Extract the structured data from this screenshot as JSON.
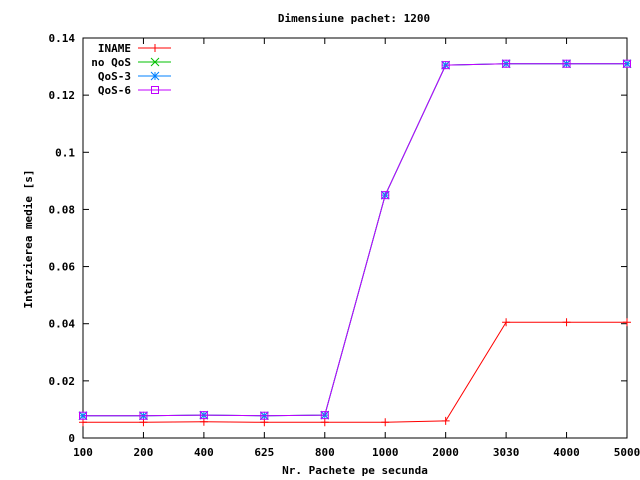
{
  "chart_data": {
    "type": "line",
    "title": "Dimensiune pachet: 1200",
    "xlabel": "Nr. Pachete pe secunda",
    "ylabel": "Intarzierea medie [s]",
    "categories": [
      "100",
      "200",
      "400",
      "625",
      "800",
      "1000",
      "2000",
      "3030",
      "4000",
      "5000"
    ],
    "ylim": [
      0,
      0.14
    ],
    "yticks": [
      0,
      0.02,
      0.04,
      0.06,
      0.08,
      0.1,
      0.12,
      0.14
    ],
    "ytick_labels": [
      "0",
      "0.02",
      "0.04",
      "0.06",
      "0.08",
      "0.1",
      "0.12",
      "0.14"
    ],
    "grid": false,
    "legend_position": "top-left",
    "series": [
      {
        "name": "INAME",
        "color": "#ff0000",
        "marker": "plus",
        "values": [
          0.0055,
          0.0055,
          0.0057,
          0.0055,
          0.0055,
          0.0055,
          0.006,
          0.0405,
          0.0405,
          0.0405
        ]
      },
      {
        "name": "no QoS",
        "color": "#00c000",
        "marker": "x",
        "values": [
          0.0078,
          0.0078,
          0.008,
          0.0078,
          0.008,
          0.085,
          0.1305,
          0.131,
          0.131,
          0.131
        ]
      },
      {
        "name": "QoS-3",
        "color": "#0080ff",
        "marker": "star",
        "values": [
          0.0078,
          0.0078,
          0.008,
          0.0078,
          0.008,
          0.085,
          0.1305,
          0.131,
          0.131,
          0.131
        ]
      },
      {
        "name": "QoS-6",
        "color": "#c000ff",
        "marker": "square",
        "values": [
          0.0078,
          0.0078,
          0.008,
          0.0078,
          0.008,
          0.085,
          0.1305,
          0.131,
          0.131,
          0.131
        ]
      }
    ]
  }
}
